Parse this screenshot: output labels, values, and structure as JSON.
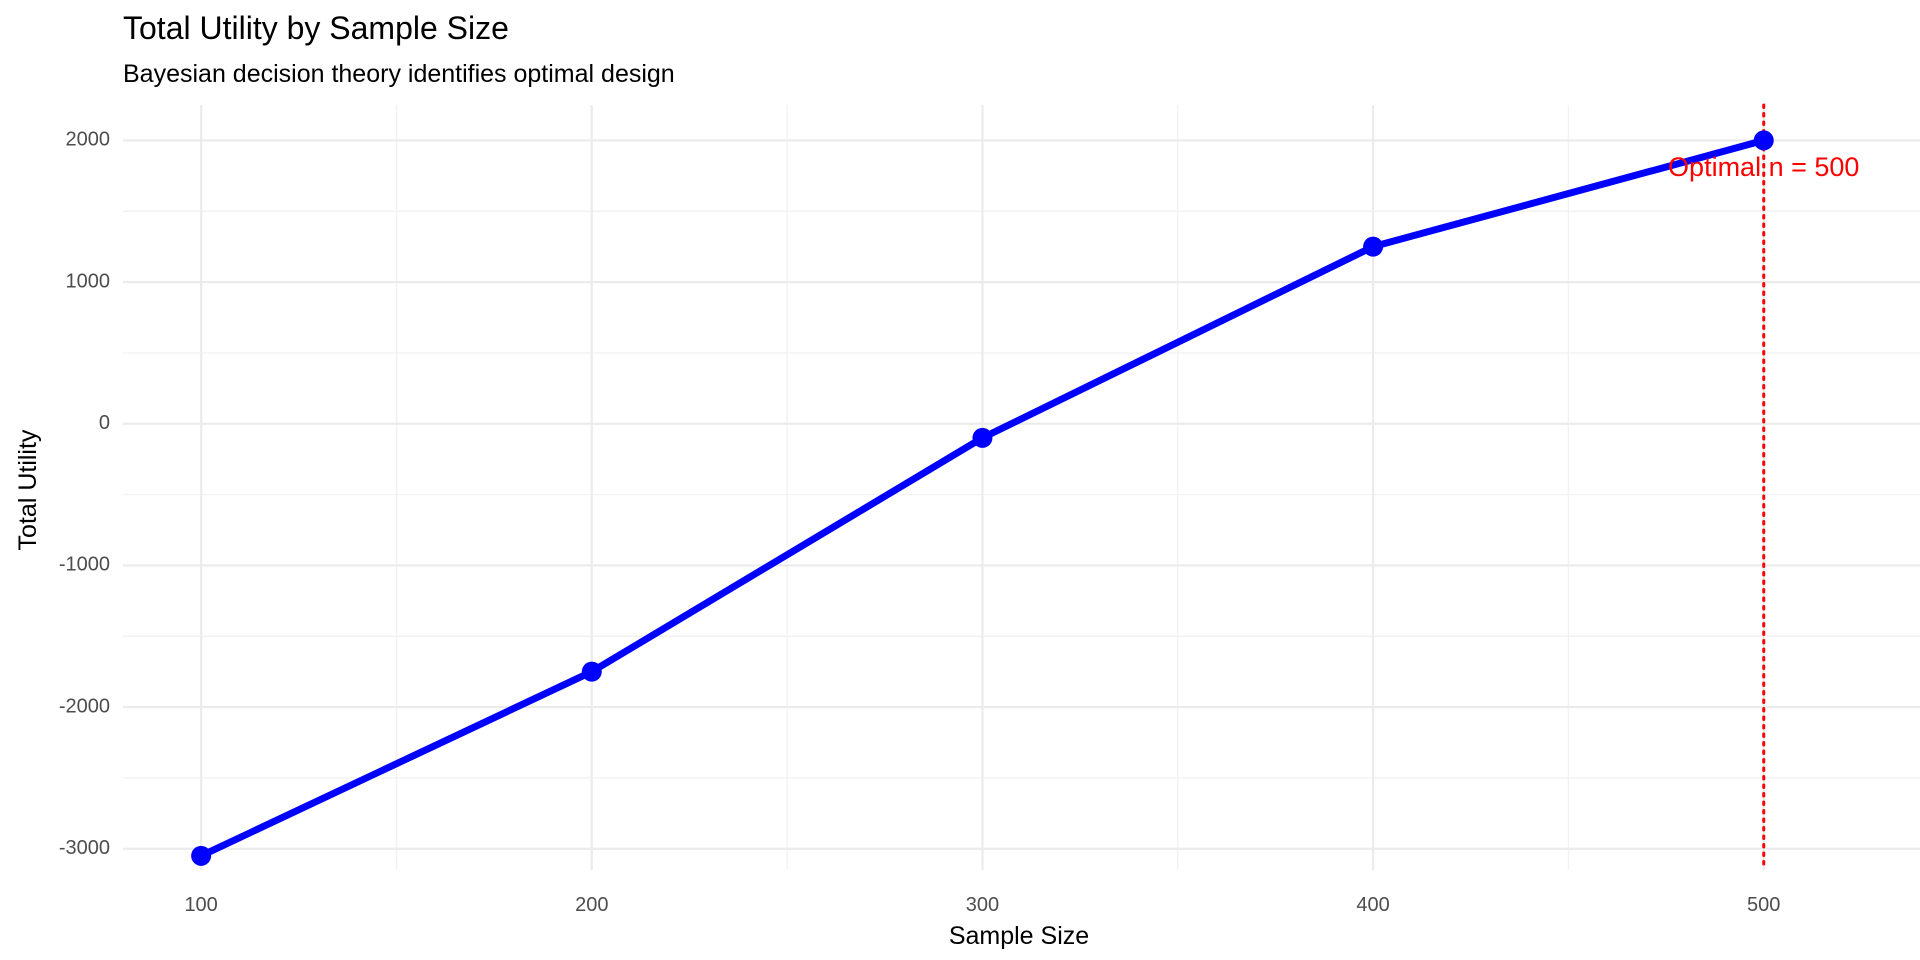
{
  "chart_data": {
    "type": "line",
    "title": "Total Utility by Sample Size",
    "subtitle": "Bayesian decision theory identifies optimal design",
    "xlabel": "Sample Size",
    "ylabel": "Total Utility",
    "x": [
      100,
      200,
      300,
      400,
      500
    ],
    "series": [
      {
        "values": [
          -3050,
          -1750,
          -100,
          1250,
          2000
        ],
        "color": "#0000ff"
      }
    ],
    "xlim": [
      80,
      540
    ],
    "ylim": [
      -3150,
      2250
    ],
    "x_ticks": [
      100,
      200,
      300,
      400,
      500
    ],
    "x_tick_labels": [
      "100",
      "200",
      "300",
      "400",
      "500"
    ],
    "x_minor_ticks": [
      150,
      250,
      350,
      450
    ],
    "y_ticks": [
      -3000,
      -2000,
      -1000,
      0,
      1000,
      2000
    ],
    "y_tick_labels": [
      "-3000",
      "-2000",
      "-1000",
      "0",
      "1000",
      "2000"
    ],
    "y_minor_ticks": [
      -2500,
      -1500,
      -500,
      500,
      1500
    ],
    "grid": true,
    "vline": {
      "x": 500,
      "color": "#ff0000",
      "style": "dotted"
    },
    "annotation": {
      "text": "Optimal n = 500",
      "x": 500,
      "y": 1800,
      "color": "#ff0000"
    }
  }
}
